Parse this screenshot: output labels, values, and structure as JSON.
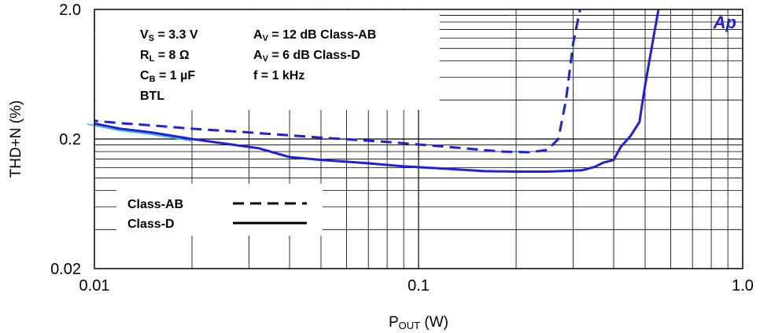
{
  "chart_data": {
    "type": "line",
    "title": "",
    "xlabel": {
      "main": "P",
      "sub": "OUT",
      "unit": " (W)"
    },
    "ylabel": "THD+N (%)",
    "x_scale": "log",
    "y_scale": "log",
    "xlim": [
      0.01,
      1.0
    ],
    "ylim": [
      0.02,
      2.0
    ],
    "x_ticks": [
      {
        "value": 0.01,
        "label": "0.01"
      },
      {
        "value": 0.1,
        "label": "0.1"
      },
      {
        "value": 1.0,
        "label": "1.0"
      }
    ],
    "y_ticks": [
      {
        "value": 2.0,
        "label": "2.0"
      },
      {
        "value": 0.2,
        "label": "0.2"
      },
      {
        "value": 0.02,
        "label": "0.02"
      }
    ],
    "grid": true,
    "logo": "Ap",
    "conditions": [
      [
        {
          "t": "V"
        },
        {
          "t": "S",
          "sub": true
        },
        {
          "t": " = 3.3 V"
        }
      ],
      [
        {
          "t": "R"
        },
        {
          "t": "L",
          "sub": true
        },
        {
          "t": " = 8 Ω"
        }
      ],
      [
        {
          "t": "C"
        },
        {
          "t": "B",
          "sub": true
        },
        {
          "t": " = 1 µF"
        }
      ],
      [
        {
          "t": "BTL"
        }
      ],
      [
        {
          "t": "A"
        },
        {
          "t": "V",
          "sub": true
        },
        {
          "t": " = 12 dB Class-AB"
        }
      ],
      [
        {
          "t": "A"
        },
        {
          "t": "V",
          "sub": true
        },
        {
          "t": " = 6 dB Class-D"
        }
      ],
      [
        {
          "t": "f = 1 kHz"
        }
      ]
    ],
    "legend": {
      "placement": "lower-left",
      "entries": [
        {
          "name": "Class-AB",
          "style": "dashed"
        },
        {
          "name": "Class-D",
          "style": "solid"
        }
      ]
    },
    "colors": {
      "curve": "#1f1fe0",
      "faint": "#33bbcc",
      "grid": "#000000"
    },
    "series": [
      {
        "name": "Class-AB",
        "style": "dashed",
        "x": [
          0.0095,
          0.012,
          0.015,
          0.02,
          0.03,
          0.05,
          0.08,
          0.12,
          0.18,
          0.22,
          0.25,
          0.27,
          0.285,
          0.3,
          0.315
        ],
        "y": [
          0.28,
          0.265,
          0.255,
          0.24,
          0.225,
          0.205,
          0.19,
          0.175,
          0.16,
          0.158,
          0.165,
          0.2,
          0.4,
          1.1,
          2.0
        ]
      },
      {
        "name": "Class-D",
        "style": "solid",
        "x": [
          0.0095,
          0.012,
          0.015,
          0.02,
          0.025,
          0.032,
          0.04,
          0.05,
          0.07,
          0.09,
          0.12,
          0.16,
          0.2,
          0.25,
          0.3,
          0.32,
          0.35,
          0.37,
          0.4,
          0.42,
          0.45,
          0.48,
          0.5,
          0.53,
          0.55
        ],
        "y": [
          0.27,
          0.24,
          0.225,
          0.2,
          0.185,
          0.17,
          0.145,
          0.138,
          0.13,
          0.123,
          0.118,
          0.113,
          0.112,
          0.112,
          0.114,
          0.115,
          0.122,
          0.131,
          0.138,
          0.173,
          0.21,
          0.27,
          0.52,
          1.2,
          2.0
        ]
      }
    ]
  }
}
